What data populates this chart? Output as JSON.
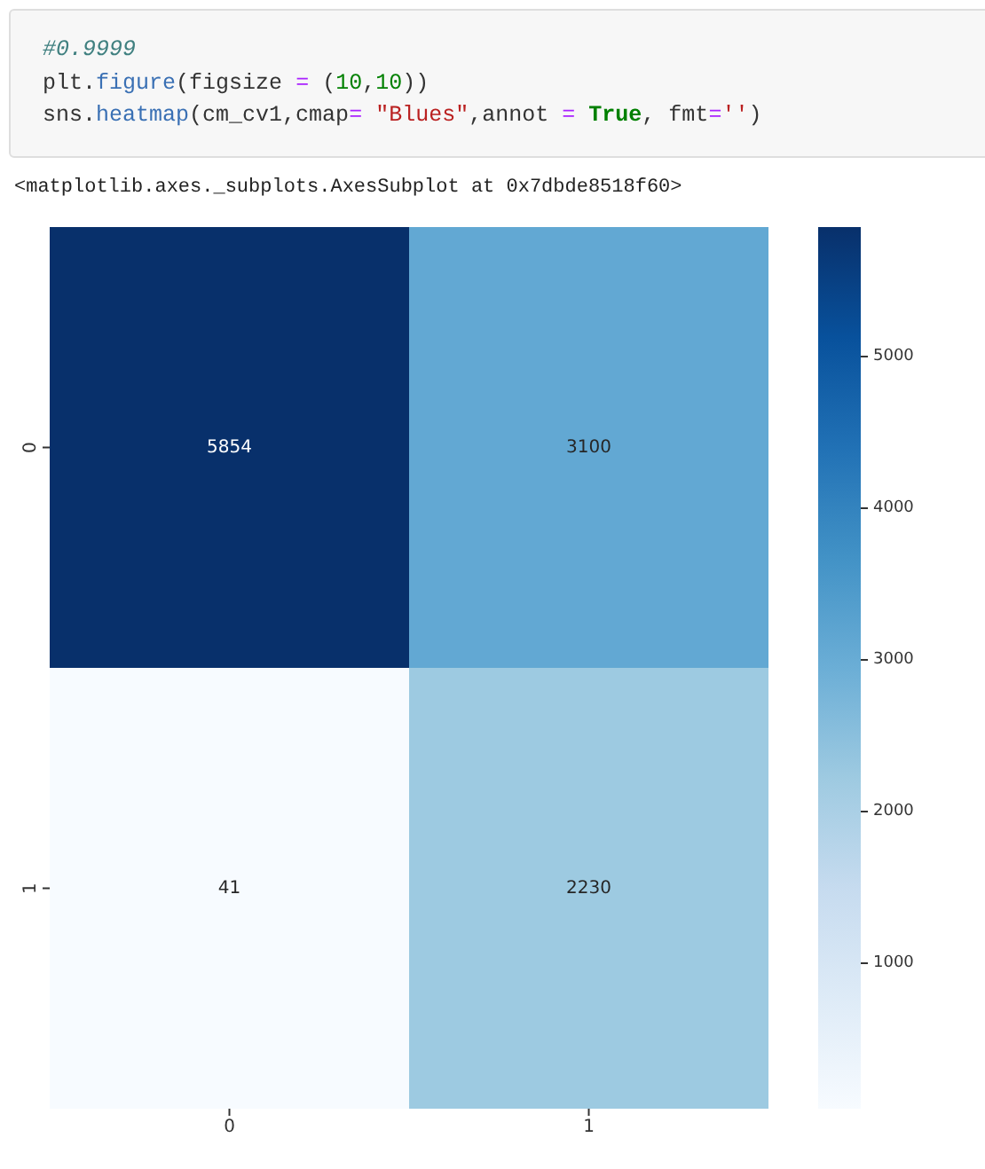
{
  "chart_data": {
    "type": "heatmap",
    "annotations": [
      "#0.9999",
      "plt.figure(figsize = (10,10))",
      "sns.heatmap(cm_cv1,cmap= \"Blues\",annot = True, fmt='')",
      "<matplotlib.axes._subplots.AxesSubplot at 0x7dbde8518f60>"
    ],
    "categories": [
      "0",
      "1"
    ],
    "y_categories": [
      "0",
      "1"
    ],
    "cells": [
      [
        5854,
        3100
      ],
      [
        41,
        2230
      ]
    ],
    "data_labels": true,
    "clim": [
      41,
      5854
    ],
    "cticks": [
      1000,
      2000,
      3000,
      4000,
      5000
    ]
  }
}
